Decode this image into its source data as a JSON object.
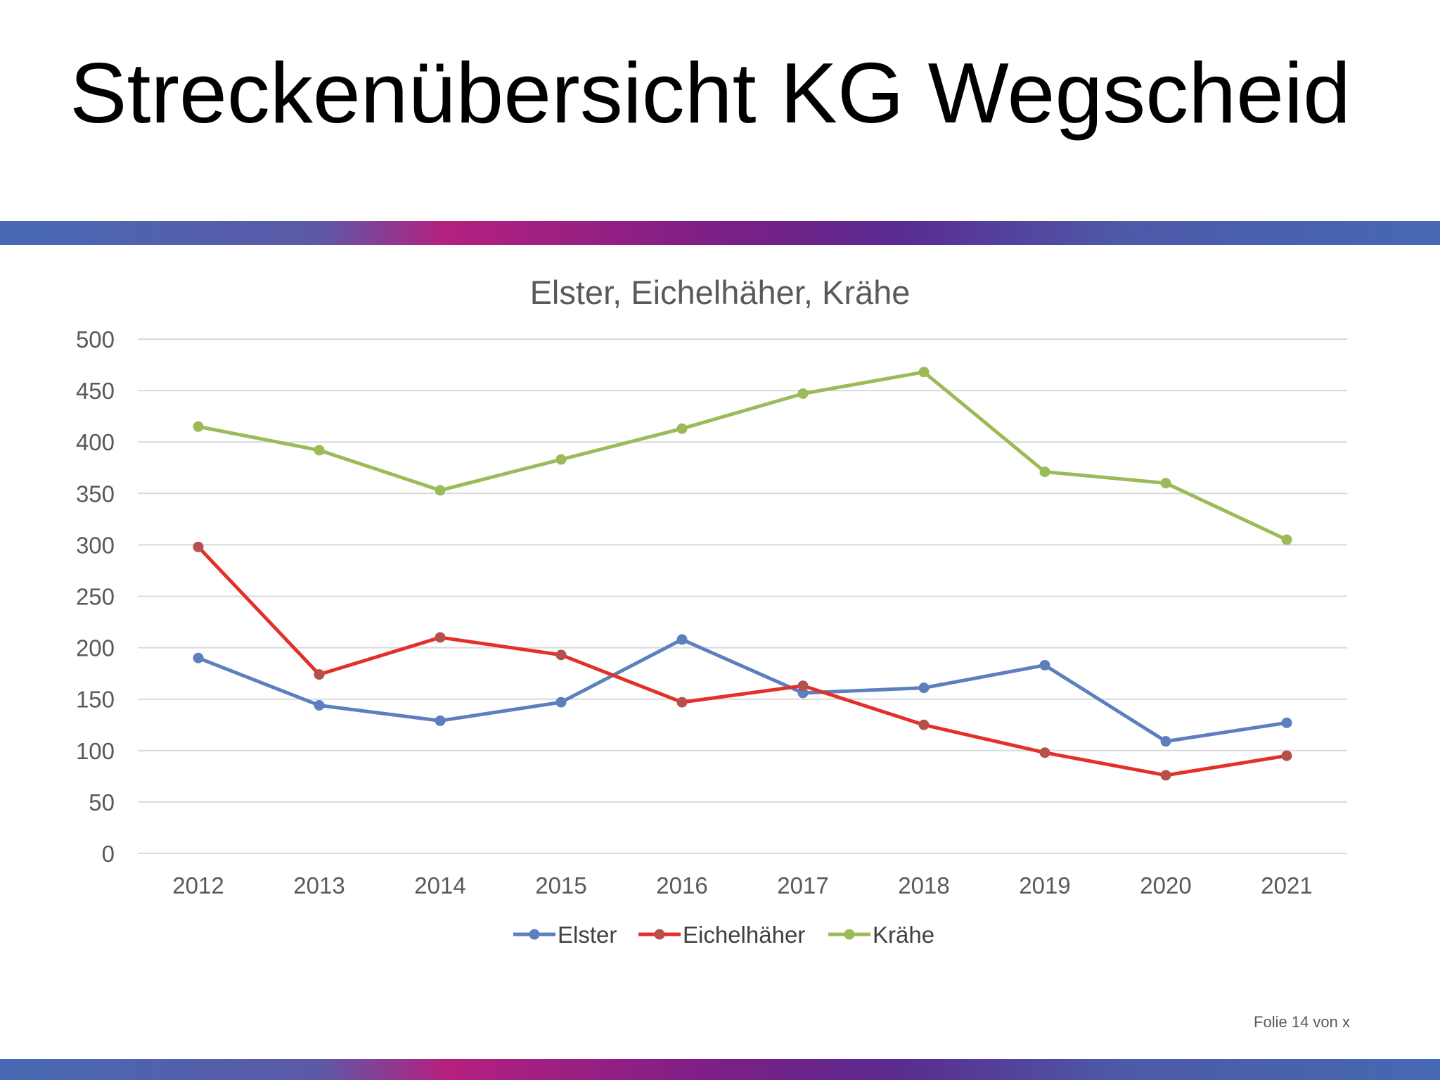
{
  "slide": {
    "title": "Streckenübersicht KG Wegscheid",
    "footer": "Folie 14 von x"
  },
  "colors": {
    "band_gradient": [
      "#4669b3",
      "#b5207f",
      "#7b1f86",
      "#4669b3"
    ],
    "gridline": "#d9d9d9",
    "text": "#595959"
  },
  "chart_data": {
    "type": "line",
    "title": "Elster, Eichelhäher, Krähe",
    "xlabel": "",
    "ylabel": "",
    "categories": [
      "2012",
      "2013",
      "2014",
      "2015",
      "2016",
      "2017",
      "2018",
      "2019",
      "2020",
      "2021"
    ],
    "ylim": [
      0,
      500
    ],
    "yticks": [
      0,
      50,
      100,
      150,
      200,
      250,
      300,
      350,
      400,
      450,
      500
    ],
    "grid": true,
    "legend_position": "bottom",
    "series": [
      {
        "name": "Elster",
        "color": "#5b7fbf",
        "marker_color": "#5b7fbf",
        "values": [
          190,
          144,
          129,
          147,
          208,
          156,
          161,
          183,
          109,
          127
        ]
      },
      {
        "name": "Eichelhäher",
        "color": "#e3312a",
        "marker_color": "#b5504a",
        "values": [
          298,
          174,
          210,
          193,
          147,
          163,
          125,
          98,
          76,
          95
        ]
      },
      {
        "name": "Krähe",
        "color": "#9bbb59",
        "marker_color": "#9bbb59",
        "values": [
          415,
          392,
          353,
          383,
          413,
          447,
          468,
          371,
          360,
          305
        ]
      }
    ]
  }
}
